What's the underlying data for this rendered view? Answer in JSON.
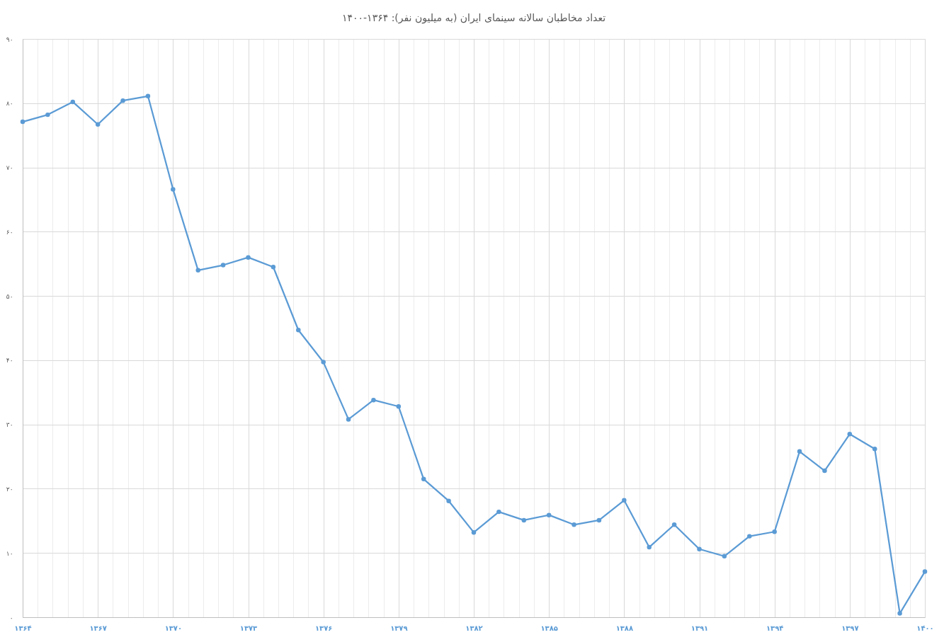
{
  "chart_data": {
    "type": "line",
    "title": "تعداد مخاطبان سالانه سینمای ایران (به میلیون نفر): ۱۳۶۴-۱۴۰۰",
    "x": [
      1364,
      1365,
      1366,
      1367,
      1368,
      1369,
      1370,
      1371,
      1372,
      1373,
      1374,
      1375,
      1376,
      1377,
      1378,
      1379,
      1380,
      1381,
      1382,
      1383,
      1384,
      1385,
      1386,
      1387,
      1388,
      1389,
      1390,
      1391,
      1392,
      1393,
      1394,
      1395,
      1396,
      1397,
      1398,
      1399,
      1400
    ],
    "values": [
      77.1,
      78.2,
      80.2,
      76.7,
      80.4,
      81.1,
      66.6,
      54.0,
      54.8,
      56.0,
      54.5,
      44.7,
      39.7,
      30.8,
      33.8,
      32.8,
      21.5,
      18.1,
      13.2,
      16.4,
      15.1,
      15.9,
      14.4,
      15.1,
      18.2,
      10.9,
      14.4,
      10.6,
      9.5,
      12.6,
      13.3,
      25.8,
      22.8,
      28.5,
      26.2,
      0.6,
      7.1
    ],
    "color": "#5b9bd5",
    "marker": "circle",
    "line_style": "solid",
    "grid": true,
    "xlim": [
      1364,
      1400
    ],
    "ylim": [
      0,
      90
    ],
    "xticks": [
      {
        "value": 1364,
        "label": "۱۳۶۴"
      },
      {
        "value": 1364.6,
        "label": null
      },
      {
        "value": 1365.2,
        "label": null
      },
      {
        "value": 1365.8,
        "label": null
      },
      {
        "value": 1366.4,
        "label": null
      },
      {
        "value": 1367,
        "label": "۱۳۶۷"
      },
      {
        "value": 1367.6,
        "label": null
      },
      {
        "value": 1368.2,
        "label": null
      },
      {
        "value": 1368.8,
        "label": null
      },
      {
        "value": 1369.4,
        "label": null
      },
      {
        "value": 1370,
        "label": "۱۳۷۰"
      },
      {
        "value": 1370.6,
        "label": null
      },
      {
        "value": 1371.2,
        "label": null
      },
      {
        "value": 1371.8,
        "label": null
      },
      {
        "value": 1372.4,
        "label": null
      },
      {
        "value": 1373,
        "label": "۱۳۷۳"
      },
      {
        "value": 1373.6,
        "label": null
      },
      {
        "value": 1374.2,
        "label": null
      },
      {
        "value": 1374.8,
        "label": null
      },
      {
        "value": 1375.4,
        "label": null
      },
      {
        "value": 1376,
        "label": "۱۳۷۶"
      },
      {
        "value": 1376.6,
        "label": null
      },
      {
        "value": 1377.2,
        "label": null
      },
      {
        "value": 1377.8,
        "label": null
      },
      {
        "value": 1378.4,
        "label": null
      },
      {
        "value": 1379,
        "label": "۱۳۷۹"
      },
      {
        "value": 1379.6,
        "label": null
      },
      {
        "value": 1380.2,
        "label": null
      },
      {
        "value": 1380.8,
        "label": null
      },
      {
        "value": 1381.4,
        "label": null
      },
      {
        "value": 1382,
        "label": "۱۳۸۲"
      },
      {
        "value": 1382.6,
        "label": null
      },
      {
        "value": 1383.2,
        "label": null
      },
      {
        "value": 1383.8,
        "label": null
      },
      {
        "value": 1384.4,
        "label": null
      },
      {
        "value": 1385,
        "label": "۱۳۸۵"
      },
      {
        "value": 1385.6,
        "label": null
      },
      {
        "value": 1386.2,
        "label": null
      },
      {
        "value": 1386.8,
        "label": null
      },
      {
        "value": 1387.4,
        "label": null
      },
      {
        "value": 1388,
        "label": "۱۳۸۸"
      },
      {
        "value": 1388.6,
        "label": null
      },
      {
        "value": 1389.2,
        "label": null
      },
      {
        "value": 1389.8,
        "label": null
      },
      {
        "value": 1390.4,
        "label": null
      },
      {
        "value": 1391,
        "label": "۱۳۹۱"
      },
      {
        "value": 1391.6,
        "label": null
      },
      {
        "value": 1392.2,
        "label": null
      },
      {
        "value": 1392.8,
        "label": null
      },
      {
        "value": 1393.4,
        "label": null
      },
      {
        "value": 1394,
        "label": "۱۳۹۴"
      },
      {
        "value": 1394.6,
        "label": null
      },
      {
        "value": 1395.2,
        "label": null
      },
      {
        "value": 1395.8,
        "label": null
      },
      {
        "value": 1396.4,
        "label": null
      },
      {
        "value": 1397,
        "label": "۱۳۹۷"
      },
      {
        "value": 1397.6,
        "label": null
      },
      {
        "value": 1398.2,
        "label": null
      },
      {
        "value": 1398.8,
        "label": null
      },
      {
        "value": 1399.4,
        "label": null
      },
      {
        "value": 1400,
        "label": "۱۴۰۰"
      }
    ],
    "yticks": [
      {
        "value": 0,
        "label": "۰"
      },
      {
        "value": 10,
        "label": "۱۰"
      },
      {
        "value": 20,
        "label": "۲۰"
      },
      {
        "value": 30,
        "label": "۳۰"
      },
      {
        "value": 40,
        "label": "۴۰"
      },
      {
        "value": 50,
        "label": "۵۰"
      },
      {
        "value": 60,
        "label": "۶۰"
      },
      {
        "value": 70,
        "label": "۷۰"
      },
      {
        "value": 80,
        "label": "۸۰"
      },
      {
        "value": 90,
        "label": "۹۰"
      }
    ]
  }
}
